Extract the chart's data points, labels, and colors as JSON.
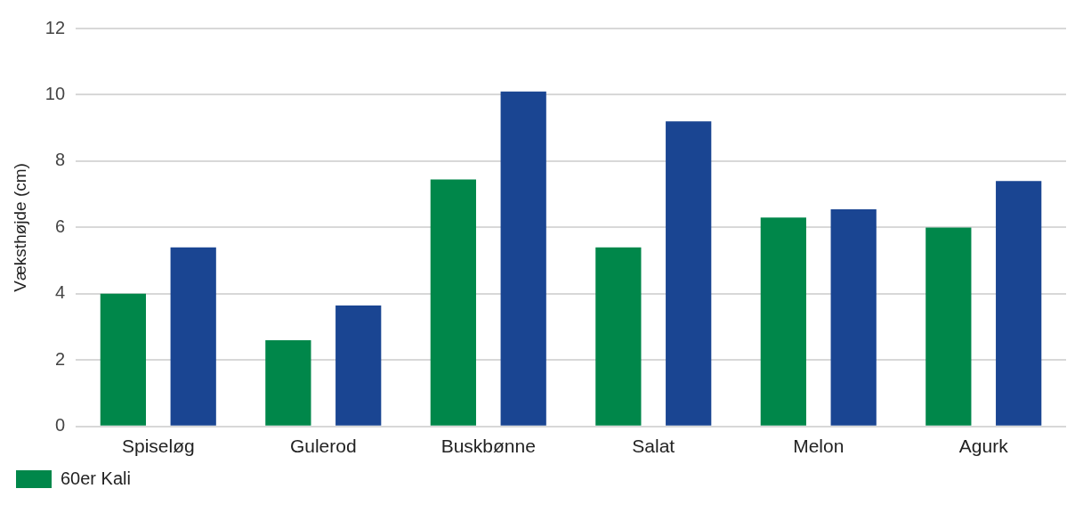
{
  "chart_data": {
    "type": "bar",
    "ylabel": "Væksthøjde (cm)",
    "categories": [
      "Spiseløg",
      "Gulerod",
      "Buskbønne",
      "Salat",
      "Melon",
      "Agurk"
    ],
    "series": [
      {
        "name": "60er Kali",
        "color": "#00874a",
        "values": [
          4.0,
          2.6,
          7.45,
          5.4,
          6.3,
          6.0
        ]
      },
      {
        "color": "#1a4592",
        "values": [
          5.4,
          3.65,
          10.1,
          9.2,
          6.55,
          7.4
        ]
      }
    ],
    "ylim": [
      0,
      12
    ],
    "yticks": [
      0,
      2,
      4,
      6,
      8,
      10,
      12
    ],
    "grid": "y",
    "legend": "bottom left"
  }
}
